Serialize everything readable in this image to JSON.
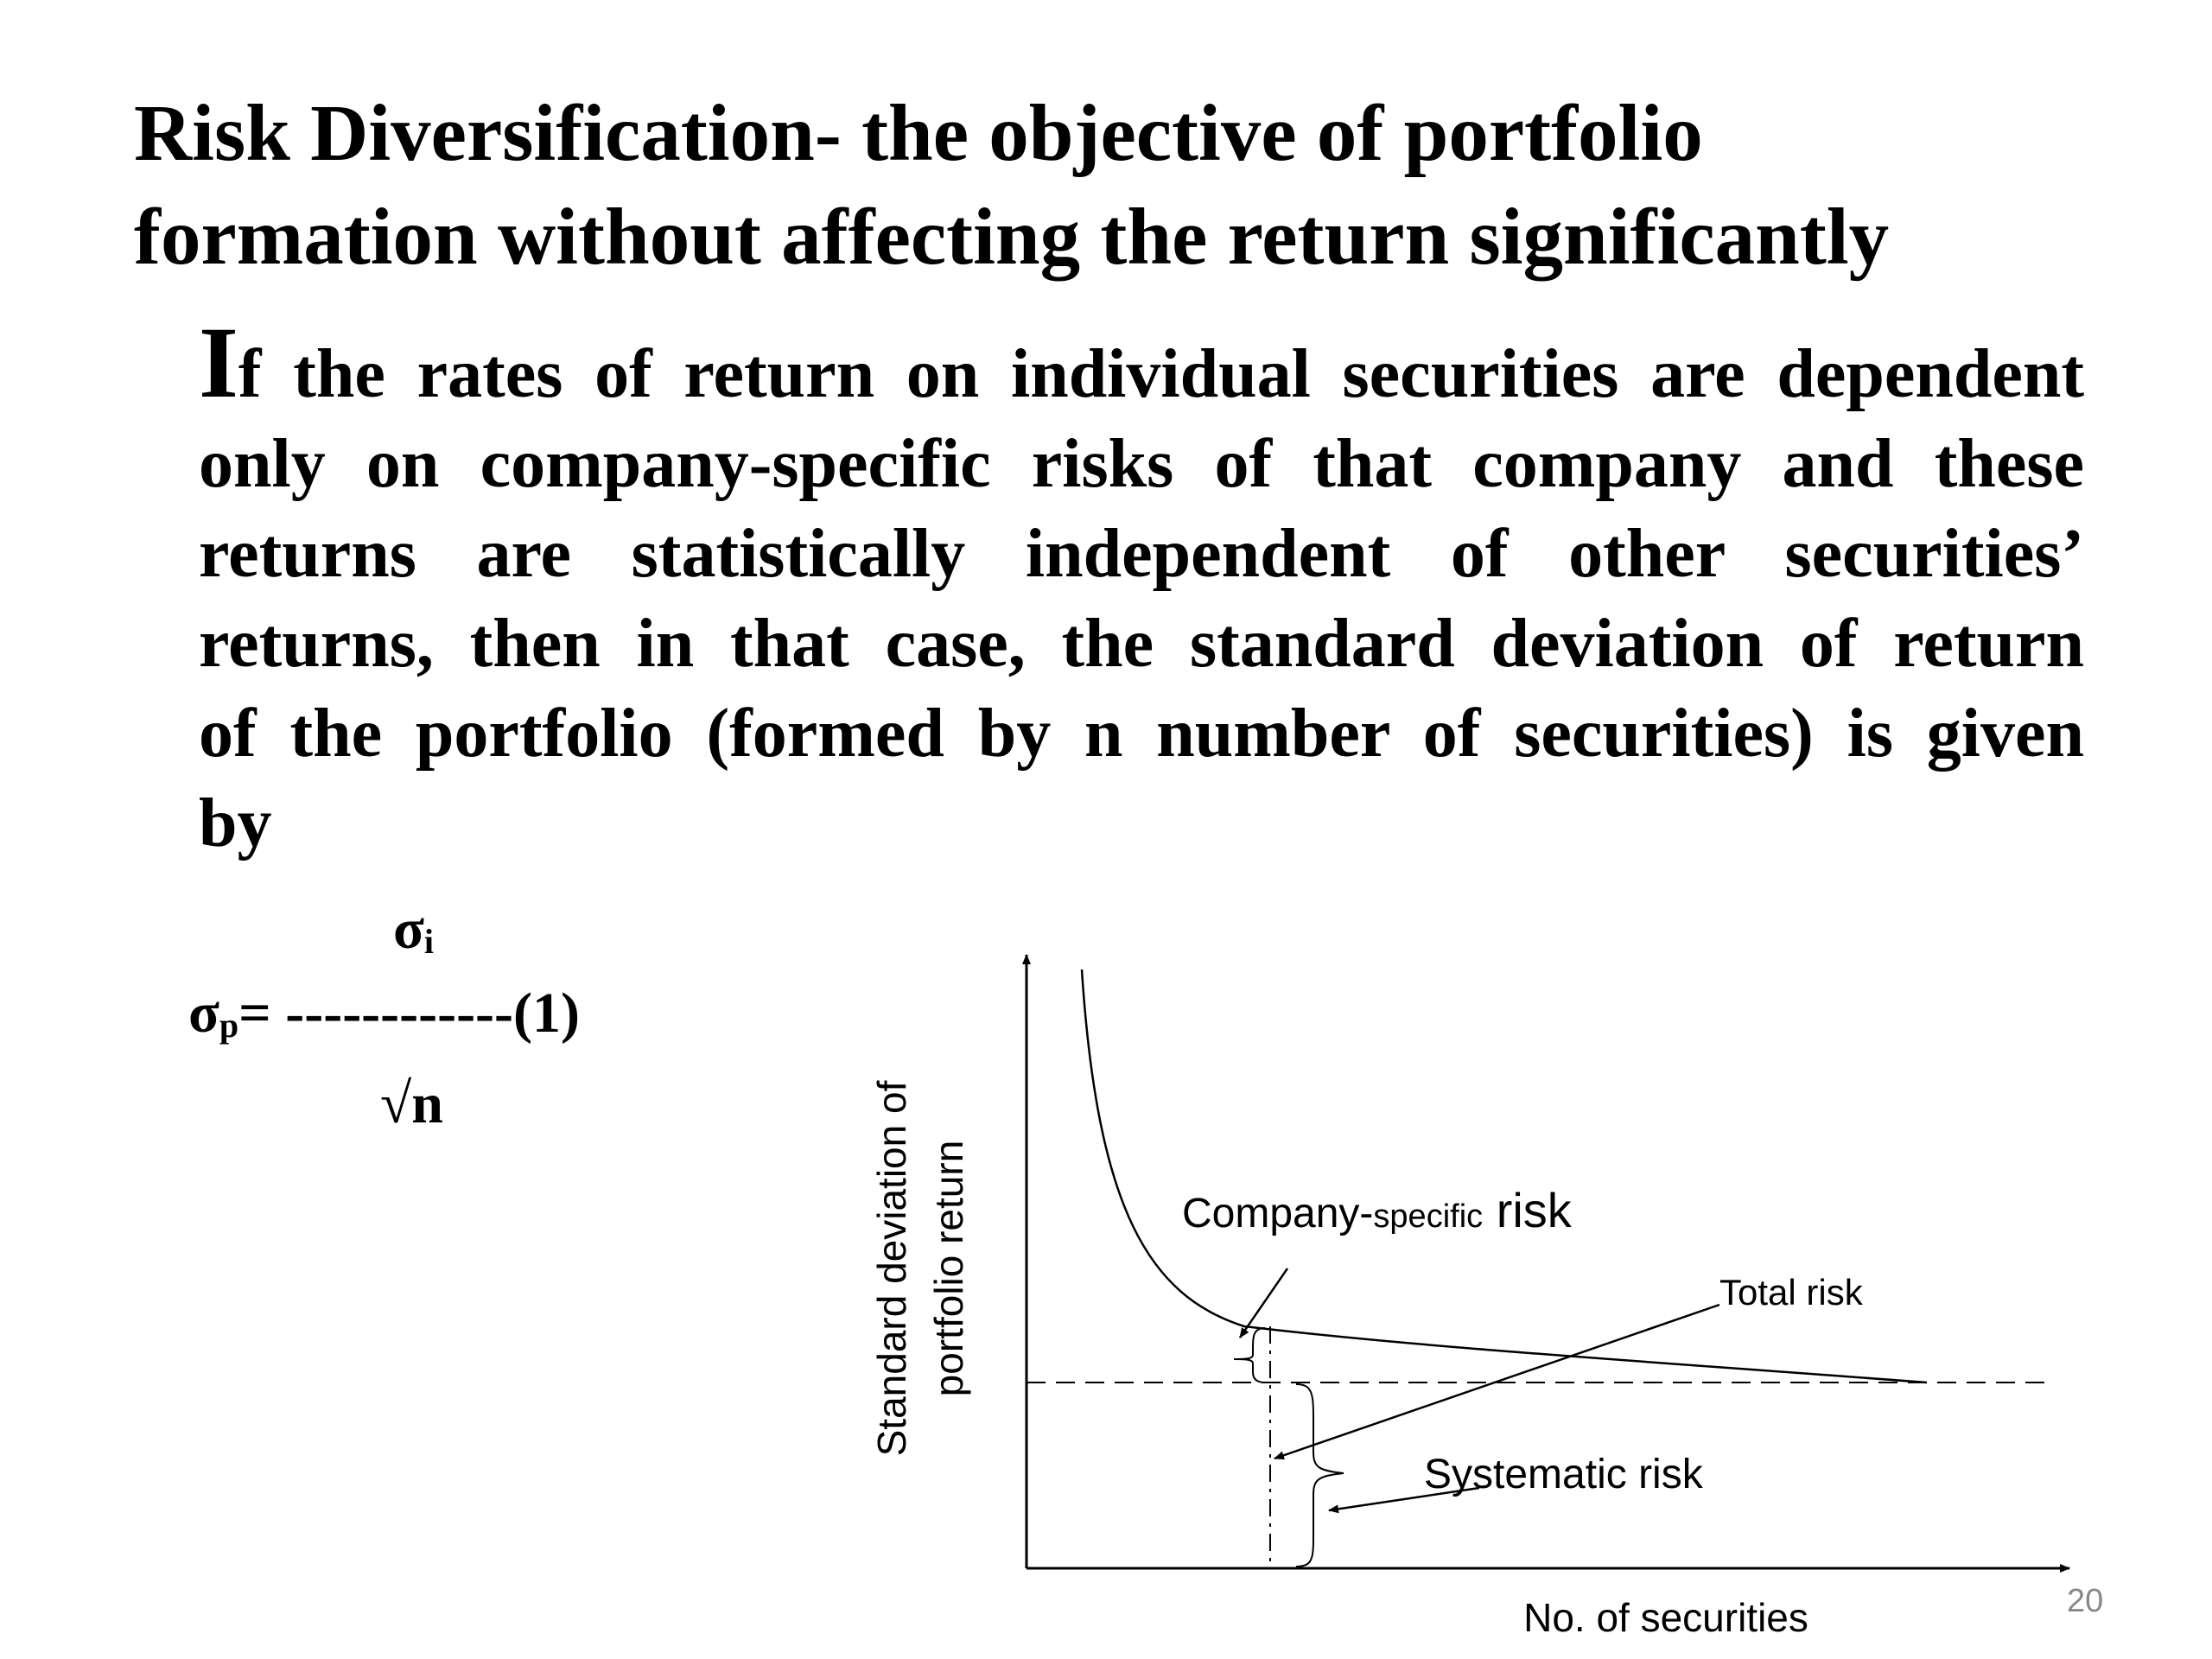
{
  "slide": {
    "title_lines": [
      "Risk Diversification- the objective of portfolio",
      "formation without affecting the return significantly"
    ],
    "body": {
      "dropcap": "I",
      "lines": [
        "f the rates of return on individual securities are dependent",
        "only on company-specific risks of that company and these",
        "returns are statistically independent of other securities’",
        "returns, then in that case,  the standard deviation of return",
        "of the portfolio (formed by n number of securities) is given",
        "by"
      ]
    },
    "formula": {
      "numerator_symbol": "σ",
      "numerator_sub": "i",
      "lhs_symbol": "σ",
      "lhs_sub": "p",
      "rhs": "= ------------(1)",
      "denominator": "√n"
    },
    "page_number": "20"
  },
  "figure": {
    "y_label_line1": "Standard deviation of",
    "y_label_line2": "portfolio return",
    "x_label": "No. of securities",
    "annotations": {
      "company_specific_prefix": "Company-",
      "company_specific_small": "specific",
      "company_specific_suffix": " risk",
      "total_risk": "Total risk",
      "systematic_risk": "Systematic risk"
    }
  }
}
